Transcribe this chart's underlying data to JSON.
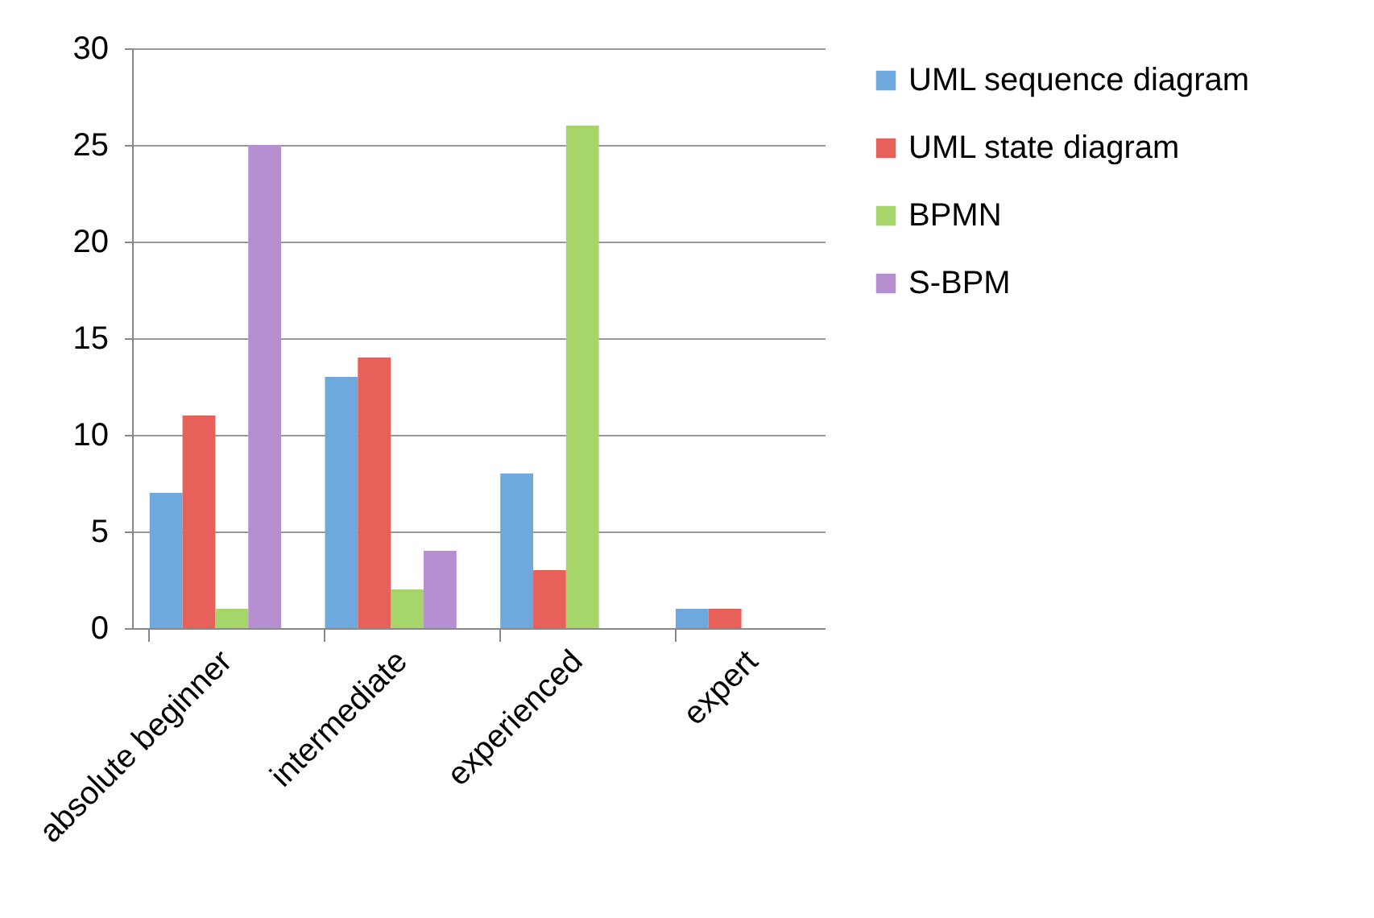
{
  "chart_data": {
    "type": "bar",
    "categories": [
      "absolute beginner",
      "intermediate",
      "experienced",
      "expert"
    ],
    "series": [
      {
        "name": "UML sequence diagram",
        "color": "#6fa8dc",
        "values": [
          7,
          13,
          8,
          1
        ]
      },
      {
        "name": "UML state diagram",
        "color": "#e8605a",
        "values": [
          11,
          14,
          3,
          1
        ]
      },
      {
        "name": "BPMN",
        "color": "#a6d66a",
        "values": [
          1,
          2,
          26,
          0
        ]
      },
      {
        "name": "S-BPM",
        "color": "#b58fd0",
        "values": [
          25,
          4,
          0,
          0
        ]
      }
    ],
    "ylim": [
      0,
      30
    ],
    "yticks": [
      0,
      5,
      10,
      15,
      20,
      25,
      30
    ],
    "grid": "y",
    "legend": "right"
  }
}
